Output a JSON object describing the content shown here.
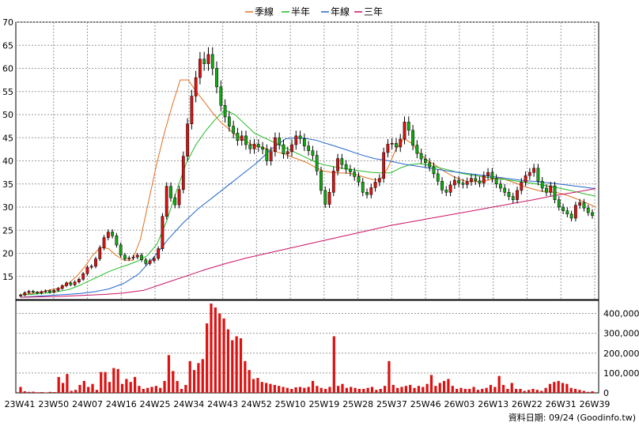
{
  "legend": [
    {
      "label": "季線",
      "color": "#e07020"
    },
    {
      "label": "半年",
      "color": "#22bb22"
    },
    {
      "label": "年線",
      "color": "#2266cc"
    },
    {
      "label": "三年",
      "color": "#cc1166"
    }
  ],
  "footer": "資料日期: 09/24 (Goodinfo.tw)",
  "chart_data": [
    {
      "type": "line",
      "chart": "weekly candlestick price chart with moving averages",
      "ylim": [
        10,
        70
      ],
      "y_ticks": [
        15,
        20,
        25,
        30,
        35,
        40,
        45,
        50,
        55,
        60,
        65,
        70
      ],
      "x_tick_labels": [
        "23W41",
        "23W50",
        "24W07",
        "24W16",
        "24W25",
        "24W34",
        "24W43",
        "24W52",
        "25W10",
        "25W19",
        "25W28",
        "25W37",
        "25W46",
        "26W03",
        "26W13",
        "26W22",
        "26W31",
        "26W39"
      ],
      "grid": true,
      "legend_position": "top",
      "candle_colors": {
        "up": "#dd1111",
        "down": "#11aa11"
      },
      "candles_close": [
        11,
        11.5,
        11.8,
        11.6,
        11.4,
        11.7,
        11.9,
        11.6,
        12,
        12.4,
        13,
        13.6,
        13.2,
        13.8,
        14.4,
        15.6,
        17,
        17.2,
        18.8,
        21.2,
        23.4,
        24.6,
        23.8,
        21.8,
        19.6,
        18.8,
        19,
        19.2,
        19.6,
        18.6,
        17.8,
        18.4,
        18.9,
        21,
        28,
        34.5,
        32,
        30.5,
        33.8,
        41,
        48,
        54,
        58,
        62,
        61,
        63,
        60,
        56,
        52,
        49.5,
        47.5,
        46,
        44.4,
        45.4,
        43.5,
        42.6,
        43.6,
        43,
        42.5,
        40,
        42,
        45,
        43.5,
        41.5,
        42,
        43.5,
        45.4,
        44.8,
        43.2,
        42.2,
        41.2,
        37.8,
        33.6,
        30.6,
        33.2,
        37.8,
        40.5,
        39.2,
        38.2,
        37.6,
        36.6,
        35.4,
        33.2,
        32.7,
        34.2,
        35.4,
        36.2,
        41.8,
        43.6,
        43.8,
        43,
        44.7,
        48.4,
        46.6,
        43.4,
        41.6,
        40.4,
        39.6,
        38.7,
        37.2,
        35.6,
        33.7,
        33.2,
        34.8,
        35.8,
        35.2,
        34.9,
        35.5,
        36.2,
        35.7,
        35.2,
        36.8,
        37.5,
        36.2,
        35,
        34.1,
        33.2,
        32.3,
        31.6,
        33.6,
        35.4,
        36.8,
        37.5,
        38.4,
        35.6,
        34.1,
        33.2,
        34.6,
        31.6,
        30,
        29.2,
        28.5,
        27.6,
        30.4,
        31,
        29.8,
        28.8,
        28.2
      ],
      "series": [
        {
          "name": "季線",
          "values": [
            11,
            11.2,
            11.5,
            11.8,
            12.2,
            12.5,
            13.5,
            15,
            17,
            19.5,
            21.3,
            21,
            19.5,
            18.5,
            18.5,
            23,
            31,
            39,
            46,
            52,
            57.5,
            57.5,
            55,
            52.8,
            50.5,
            48.5,
            47,
            45.5,
            44.5,
            43.5,
            43,
            42.5,
            42,
            41.5,
            40.8,
            40.2,
            39.5,
            38.5,
            37.8,
            37.5,
            37.4,
            37.3,
            37,
            36.5,
            36,
            35.8,
            38.5,
            42.5,
            44.8,
            43.8,
            41.5,
            40,
            39,
            37.8,
            36.8,
            36,
            35.5,
            35.5,
            35.6,
            36,
            36.3,
            35.8,
            35.2,
            34.5,
            34,
            33.5,
            33.3,
            33.2,
            32.8,
            32.2,
            31.5,
            30.8,
            30
          ]
        },
        {
          "name": "半年",
          "values": [
            11,
            11.1,
            11.3,
            11.5,
            11.8,
            12.2,
            13,
            14,
            15,
            16,
            16.8,
            17.5,
            18.3,
            19.5,
            22,
            27,
            33.5,
            39.5,
            43.5,
            46.5,
            49,
            51,
            50,
            48,
            46,
            45,
            44,
            43,
            42,
            41,
            40,
            39.2,
            38.8,
            38.4,
            38.1,
            37.8,
            37.5,
            37.4,
            37.4,
            38.5,
            39.2,
            39.4,
            39,
            38.5,
            38,
            37.4,
            37,
            36.7,
            36.4,
            36.1,
            35.9,
            35.6,
            35.3,
            35,
            34.6,
            34.2,
            33.8,
            33.3,
            32.8,
            32.4
          ]
        },
        {
          "name": "年線",
          "values": [
            10.5,
            10.7,
            10.9,
            11.1,
            11.3,
            11.7,
            12.3,
            13.5,
            15.5,
            19,
            23,
            26.5,
            29.5,
            32,
            34.5,
            37,
            39.5,
            42.5,
            44.8,
            45,
            44.5,
            43.5,
            42.5,
            41.4,
            40.5,
            40,
            39.3,
            38.8,
            38.3,
            37.8,
            37.4,
            37,
            36.6,
            36.2,
            35.8,
            35.5,
            35.2,
            34.8,
            34.4,
            34
          ]
        },
        {
          "name": "三年",
          "values": [
            10.5,
            10.6,
            10.7,
            10.9,
            11.1,
            11.4,
            12,
            13.5,
            15,
            16.5,
            17.8,
            19,
            20,
            21,
            22,
            23,
            24,
            25,
            26,
            26.8,
            27.6,
            28.4,
            29.2,
            30,
            30.8,
            31.6,
            32.5,
            33.2,
            34
          ]
        }
      ]
    },
    {
      "type": "bar",
      "chart": "weekly volume",
      "ylim": [
        0,
        450000
      ],
      "y_tick_labels": [
        "0",
        "100,000",
        "200,000",
        "300,000",
        "400,000"
      ],
      "bar_color": "#dd1111",
      "values": [
        30000,
        8000,
        5000,
        6000,
        3000,
        4000,
        2000,
        5000,
        4000,
        80000,
        50000,
        95000,
        10000,
        15000,
        40000,
        60000,
        30000,
        45000,
        15000,
        105000,
        105000,
        55000,
        125000,
        120000,
        45000,
        70000,
        55000,
        80000,
        35000,
        20000,
        25000,
        30000,
        35000,
        25000,
        60000,
        190000,
        110000,
        60000,
        20000,
        40000,
        160000,
        115000,
        150000,
        170000,
        350000,
        450000,
        430000,
        400000,
        375000,
        320000,
        265000,
        285000,
        275000,
        160000,
        115000,
        70000,
        75000,
        55000,
        50000,
        45000,
        40000,
        35000,
        30000,
        25000,
        20000,
        28000,
        30000,
        25000,
        30000,
        60000,
        35000,
        25000,
        20000,
        30000,
        285000,
        35000,
        45000,
        25000,
        30000,
        25000,
        20000,
        20000,
        25000,
        30000,
        15000,
        20000,
        35000,
        160000,
        40000,
        25000,
        30000,
        35000,
        40000,
        25000,
        35000,
        30000,
        45000,
        90000,
        35000,
        50000,
        60000,
        70000,
        35000,
        20000,
        25000,
        20000,
        20000,
        30000,
        15000,
        20000,
        25000,
        40000,
        30000,
        85000,
        40000,
        20000,
        50000,
        20000,
        20000,
        10000,
        15000,
        20000,
        15000,
        10000,
        25000,
        45000,
        55000,
        60000,
        50000,
        45000,
        25000,
        20000,
        15000,
        10000,
        5000,
        8000
      ]
    }
  ]
}
